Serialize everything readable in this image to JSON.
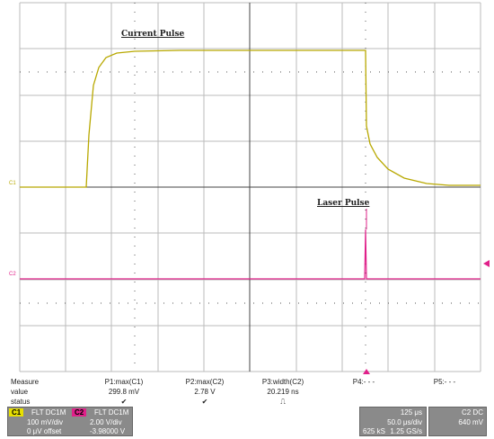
{
  "annotations": {
    "current": "Current Pulse",
    "laser": "Laser Pulse",
    "c1": "C1",
    "c2": "C2"
  },
  "measure": {
    "header": [
      "Measure",
      "P1:max(C1)",
      "P2:max(C2)",
      "P3:width(C2)",
      "P4:- - -",
      "P5:- - -"
    ],
    "value": [
      "value",
      "299.8 mV",
      "2.78 V",
      "20.219 ns"
    ],
    "status": [
      "status",
      "✔",
      "✔",
      "⎍"
    ]
  },
  "channels": [
    {
      "name": "C1",
      "coupling": "FLT  DC1M",
      "scale": "100 mV/div",
      "offset": "0 μV offset"
    },
    {
      "name": "C2",
      "coupling": "FLT  DC1M",
      "scale": "2.00 V/div",
      "offset": "-3.98000 V"
    }
  ],
  "timebase": {
    "delay": "125 μs",
    "scale": "50.0 μs/div",
    "points": "625 kS",
    "rate": "1.25 GS/s"
  },
  "trigger": {
    "source": "C2 DC",
    "level": "640 mV"
  }
}
